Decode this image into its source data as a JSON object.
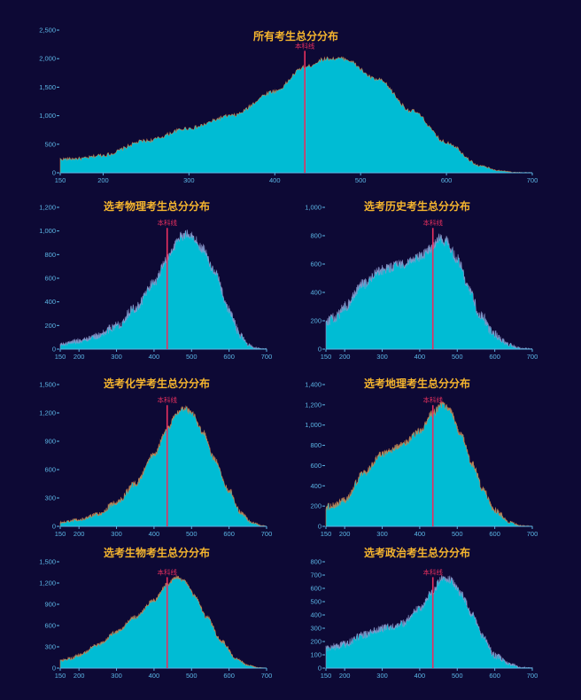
{
  "cutoff_label": "本科线",
  "colors": {
    "background": "#0d0935",
    "area": "#00bcd4",
    "edge_warm": "#e0884a",
    "edge_cool": "#9aa0d6",
    "title": "#f5b52e",
    "axis": "#5cb6e6",
    "cutoff": "#e8305f"
  },
  "chart_data": [
    {
      "id": "all",
      "type": "area",
      "title": "所有考生总分分布",
      "xlabel": "",
      "ylabel": "",
      "xlim": [
        150,
        700
      ],
      "xticks": [
        150,
        200,
        300,
        400,
        500,
        600,
        700
      ],
      "ylim": [
        0,
        2500
      ],
      "yticks": [
        0,
        500,
        1000,
        1500,
        2000,
        2500
      ],
      "cutoff_x": 435,
      "profile": {
        "x": [
          150,
          175,
          200,
          250,
          300,
          350,
          400,
          435,
          460,
          480,
          520,
          560,
          600,
          640,
          660,
          680,
          700
        ],
        "y": [
          240,
          250,
          310,
          560,
          780,
          1000,
          1430,
          1850,
          2000,
          2000,
          1630,
          1080,
          530,
          120,
          40,
          8,
          0
        ]
      },
      "noise": 35,
      "edge": "warm"
    },
    {
      "id": "physics",
      "type": "area",
      "title": "选考物理考生总分分布",
      "xlabel": "",
      "ylabel": "",
      "xlim": [
        150,
        700
      ],
      "xticks": [
        150,
        200,
        300,
        400,
        500,
        600,
        700
      ],
      "ylim": [
        0,
        1200
      ],
      "yticks": [
        0,
        200,
        400,
        600,
        800,
        1000,
        1200
      ],
      "cutoff_x": 435,
      "profile": {
        "x": [
          150,
          200,
          250,
          300,
          350,
          400,
          435,
          470,
          490,
          500,
          530,
          560,
          600,
          630,
          650,
          670,
          690,
          700
        ],
        "y": [
          40,
          70,
          110,
          200,
          350,
          560,
          770,
          950,
          980,
          960,
          850,
          660,
          330,
          120,
          40,
          10,
          0,
          0
        ]
      },
      "noise": 40,
      "edge": "cool"
    },
    {
      "id": "history",
      "type": "area",
      "title": "选考历史考生总分分布",
      "xlabel": "",
      "ylabel": "",
      "xlim": [
        150,
        700
      ],
      "xticks": [
        150,
        200,
        300,
        400,
        500,
        600,
        700
      ],
      "ylim": [
        0,
        1000
      ],
      "yticks": [
        0,
        200,
        400,
        600,
        800,
        1000
      ],
      "cutoff_x": 435,
      "profile": {
        "x": [
          150,
          175,
          200,
          250,
          300,
          350,
          400,
          435,
          450,
          470,
          500,
          530,
          560,
          600,
          640,
          670,
          700
        ],
        "y": [
          200,
          220,
          300,
          460,
          560,
          600,
          650,
          720,
          780,
          760,
          640,
          430,
          250,
          100,
          30,
          5,
          0
        ]
      },
      "noise": 38,
      "edge": "cool"
    },
    {
      "id": "chemistry",
      "type": "area",
      "title": "选考化学考生总分分布",
      "xlabel": "",
      "ylabel": "",
      "xlim": [
        150,
        700
      ],
      "xticks": [
        150,
        200,
        300,
        400,
        500,
        600,
        700
      ],
      "ylim": [
        0,
        1500
      ],
      "yticks": [
        0,
        300,
        600,
        900,
        1200,
        1500
      ],
      "cutoff_x": 435,
      "profile": {
        "x": [
          150,
          200,
          250,
          300,
          350,
          400,
          435,
          460,
          480,
          500,
          530,
          560,
          600,
          630,
          660,
          690,
          700
        ],
        "y": [
          40,
          70,
          130,
          250,
          450,
          760,
          1030,
          1200,
          1250,
          1200,
          1000,
          720,
          380,
          150,
          40,
          5,
          0
        ]
      },
      "noise": 32,
      "edge": "warm"
    },
    {
      "id": "geography",
      "type": "area",
      "title": "选考地理考生总分分布",
      "xlabel": "",
      "ylabel": "",
      "xlim": [
        150,
        700
      ],
      "xticks": [
        150,
        200,
        300,
        400,
        500,
        600,
        700
      ],
      "ylim": [
        0,
        1400
      ],
      "yticks": [
        0,
        200,
        400,
        600,
        800,
        1000,
        1200,
        1400
      ],
      "cutoff_x": 435,
      "profile": {
        "x": [
          150,
          175,
          200,
          250,
          300,
          350,
          400,
          435,
          460,
          480,
          510,
          540,
          570,
          600,
          640,
          670,
          700
        ],
        "y": [
          190,
          210,
          260,
          520,
          710,
          800,
          940,
          1120,
          1200,
          1150,
          900,
          620,
          360,
          160,
          40,
          5,
          0
        ]
      },
      "noise": 35,
      "edge": "warm"
    },
    {
      "id": "biology",
      "type": "area",
      "title": "选考生物考生总分分布",
      "xlabel": "",
      "ylabel": "",
      "xlim": [
        150,
        700
      ],
      "xticks": [
        150,
        200,
        300,
        400,
        500,
        600,
        700
      ],
      "ylim": [
        0,
        1500
      ],
      "yticks": [
        0,
        300,
        600,
        900,
        1200,
        1500
      ],
      "cutoff_x": 435,
      "profile": {
        "x": [
          150,
          175,
          200,
          250,
          300,
          350,
          400,
          435,
          460,
          480,
          510,
          540,
          580,
          620,
          650,
          680,
          700
        ],
        "y": [
          100,
          130,
          180,
          330,
          510,
          720,
          960,
          1180,
          1280,
          1230,
          1010,
          720,
          380,
          130,
          40,
          5,
          0
        ]
      },
      "noise": 28,
      "edge": "warm"
    },
    {
      "id": "politics",
      "type": "area",
      "title": "选考政治考生总分分布",
      "xlabel": "",
      "ylabel": "",
      "xlim": [
        150,
        700
      ],
      "xticks": [
        150,
        200,
        300,
        400,
        500,
        600,
        700
      ],
      "ylim": [
        0,
        800
      ],
      "yticks": [
        0,
        100,
        200,
        300,
        400,
        500,
        600,
        700,
        800
      ],
      "cutoff_x": 435,
      "profile": {
        "x": [
          150,
          175,
          200,
          250,
          300,
          350,
          400,
          435,
          460,
          480,
          510,
          540,
          570,
          600,
          640,
          670,
          700
        ],
        "y": [
          150,
          160,
          180,
          250,
          300,
          330,
          450,
          580,
          680,
          670,
          560,
          400,
          230,
          100,
          30,
          5,
          0
        ]
      },
      "noise": 30,
      "edge": "cool"
    }
  ]
}
